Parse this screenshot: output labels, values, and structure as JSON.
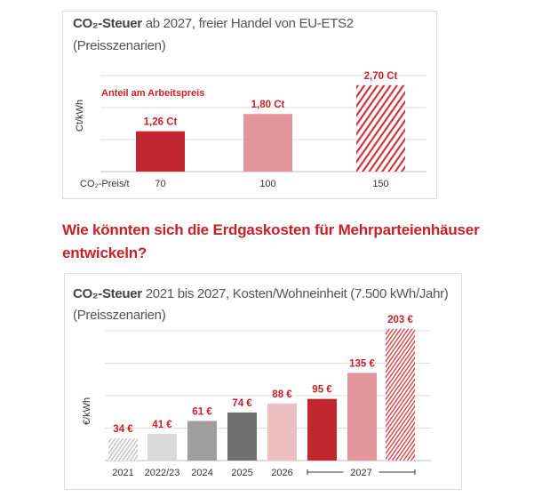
{
  "heading": {
    "line1": "Wie könnten sich die Erdgaskosten für Mehrparteienhäuser",
    "line2": "entwickeln?"
  },
  "chart_data": [
    {
      "type": "bar",
      "title_bold": "CO₂-Steuer",
      "title_rest": " ab 2027, freier Handel von EU-ETS2",
      "subtitle": "(Preisszenarien)",
      "ylabel": "Ct/kWh",
      "xlabel": "CO₂-Preis/t",
      "annotation": "Anteil am Arbeitspreis",
      "categories": [
        "70",
        "100",
        "150"
      ],
      "values": [
        1.26,
        1.8,
        2.7
      ],
      "data_labels": [
        "1,26 Ct",
        "1,80 Ct",
        "2,70 Ct"
      ],
      "colors": [
        "#c1272d",
        "#e3969a",
        "hatch-red"
      ],
      "ylim": [
        0,
        3
      ],
      "grid": true
    },
    {
      "type": "bar",
      "title_bold": "CO₂-Steuer",
      "title_rest": " 2021 bis 2027, Kosten/Wohneinheit (7.500 kWh/Jahr)",
      "subtitle": "(Preisszenarien)",
      "ylabel": "€/kWh",
      "categories": [
        "2021",
        "2022/23",
        "2024",
        "2025",
        "2026",
        "2027",
        "2027",
        "2027"
      ],
      "tick_labels": [
        "2021",
        "2022/23",
        "2024",
        "2025",
        "2026"
      ],
      "group_label": "2027",
      "values": [
        34,
        41,
        61,
        74,
        88,
        95,
        135,
        203
      ],
      "data_labels": [
        "34 €",
        "41 €",
        "61 €",
        "74 €",
        "88 €",
        "95 €",
        "135 €",
        "203 €"
      ],
      "colors": [
        "hatch-gray",
        "#d9d9d9",
        "#9e9e9e",
        "#6f6f6f",
        "#ecbfc1",
        "#c1272d",
        "#e3969a",
        "hatch-red"
      ],
      "ylim": [
        0,
        200
      ],
      "grid": true
    }
  ]
}
